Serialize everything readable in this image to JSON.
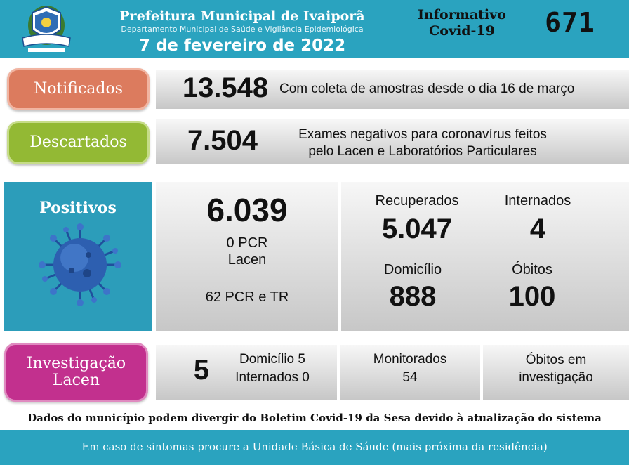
{
  "header": {
    "title": "Prefeitura Municipal de Ivaiporã",
    "subtitle": "Departamento Municipal de Saúde e Vigilância Epidemiológica",
    "date": "7 de fevereiro de 2022",
    "informativo_line1": "Informativo",
    "informativo_line2": "Covid-19",
    "number": "671"
  },
  "notificados": {
    "label": "Notificados",
    "value": "13.548",
    "description": "Com coleta de amostras desde o dia 16 de março"
  },
  "descartados": {
    "label": "Descartados",
    "value": "7.504",
    "description_line1": "Exames negativos para coronavírus feitos",
    "description_line2": "pelo Lacen e Laboratórios Particulares"
  },
  "positivos": {
    "label": "Positivos",
    "value": "6.039",
    "pcr_lacen_line1": "0 PCR",
    "pcr_lacen_line2": "Lacen",
    "pcr_tr": "62 PCR e TR",
    "recuperados_label": "Recuperados",
    "recuperados_value": "5.047",
    "internados_label": "Internados",
    "internados_value": "4",
    "domicilio_label": "Domicílio",
    "domicilio_value": "888",
    "obitos_label": "Óbitos",
    "obitos_value": "100"
  },
  "investigacao": {
    "label_line1": "Investigação",
    "label_line2": "Lacen",
    "value": "5",
    "domicilio": "Domicílio 5",
    "internados": "Internados 0",
    "monitorados_label": "Monitorados",
    "monitorados_value": "54",
    "obitos_line1": "Óbitos em",
    "obitos_line2": "investigação"
  },
  "note": "Dados do município podem divergir do Boletim Covid-19 da Sesa devido à atualização do sistema",
  "footer": "Em caso de sintomas procure a Unidade Básica de Sáude (mais próxima da residência)",
  "colors": {
    "header": "#2aa3bf",
    "notificados": "#dc7b5e",
    "descartados": "#93b934",
    "positivos": "#2c9dba",
    "investigacao": "#c2308e"
  }
}
